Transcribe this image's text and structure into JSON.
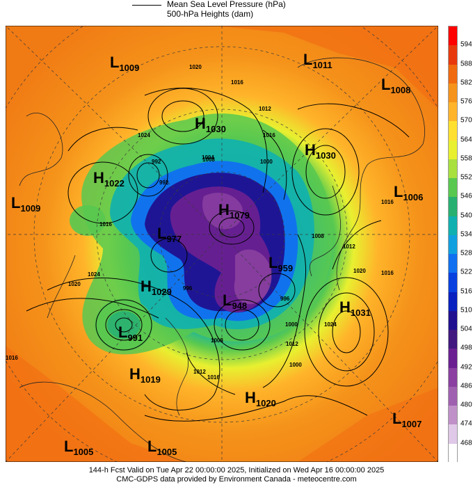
{
  "legend": {
    "line_label": "Mean Sea Level Pressure (hPa)",
    "fill_label": "500-hPa Heights (dam)"
  },
  "colorbar": {
    "labels": [
      "594",
      "588",
      "582",
      "576",
      "570",
      "564",
      "558",
      "552",
      "546",
      "540",
      "534",
      "528",
      "522",
      "516",
      "510",
      "504",
      "498",
      "492",
      "486",
      "480",
      "474",
      "468"
    ],
    "colors": [
      "#ff0000",
      "#e8390e",
      "#f06a10",
      "#f5931a",
      "#ffb42a",
      "#ffe030",
      "#e8f030",
      "#a8e040",
      "#58c850",
      "#28b070",
      "#10b0b0",
      "#10a0e0",
      "#1070f0",
      "#0840e0",
      "#0820c0",
      "#201090",
      "#401880",
      "#6a2090",
      "#8a40a0",
      "#a060b0",
      "#c090c8",
      "#e0c8e8"
    ]
  },
  "systems": [
    {
      "type": "L",
      "value": "1009",
      "name": "low-1009-nw"
    },
    {
      "type": "L",
      "value": "1011",
      "name": "low-1011-n"
    },
    {
      "type": "L",
      "value": "1008",
      "name": "low-1008-ne"
    },
    {
      "type": "H",
      "value": "1030",
      "name": "high-1030-n"
    },
    {
      "type": "H",
      "value": "1030",
      "name": "high-1030-ne"
    },
    {
      "type": "H",
      "value": "1022",
      "name": "high-1022-w"
    },
    {
      "type": "L",
      "value": "1009",
      "name": "low-1009-w"
    },
    {
      "type": "L",
      "value": "1006",
      "name": "low-1006-e"
    },
    {
      "type": "H",
      "value": "1079",
      "name": "high-1079-pole"
    },
    {
      "type": "L",
      "value": "977",
      "name": "low-977"
    },
    {
      "type": "L",
      "value": "959",
      "name": "low-959"
    },
    {
      "type": "H",
      "value": "1029",
      "name": "high-1029-sw"
    },
    {
      "type": "L",
      "value": "948",
      "name": "low-948"
    },
    {
      "type": "H",
      "value": "1031",
      "name": "high-1031-se"
    },
    {
      "type": "L",
      "value": "991",
      "name": "low-991"
    },
    {
      "type": "H",
      "value": "1019",
      "name": "high-1019"
    },
    {
      "type": "H",
      "value": "1020",
      "name": "high-1020"
    },
    {
      "type": "L",
      "value": "1007",
      "name": "low-1007"
    },
    {
      "type": "L",
      "value": "1005",
      "name": "low-1005-sw"
    },
    {
      "type": "L",
      "value": "1005",
      "name": "low-1005-s"
    }
  ],
  "contour_labels": [
    "1020",
    "1016",
    "1012",
    "1016",
    "1024",
    "1008",
    "992",
    "1004",
    "1000",
    "1016",
    "1008",
    "1012",
    "1020",
    "1016",
    "1024",
    "1012",
    "1000",
    "996",
    "1016",
    "1024",
    "1020",
    "1016",
    "1008",
    "996",
    "1000",
    "1012",
    "1016",
    "992"
  ],
  "footer": {
    "line1": "144-h Fcst Valid on Tue Apr 22 00:00:00 2025, Initialized on Wed Apr 16 00:00:00 2025",
    "line2": "CMC-GDPS data provided by Environment Canada - meteocentre.com"
  }
}
